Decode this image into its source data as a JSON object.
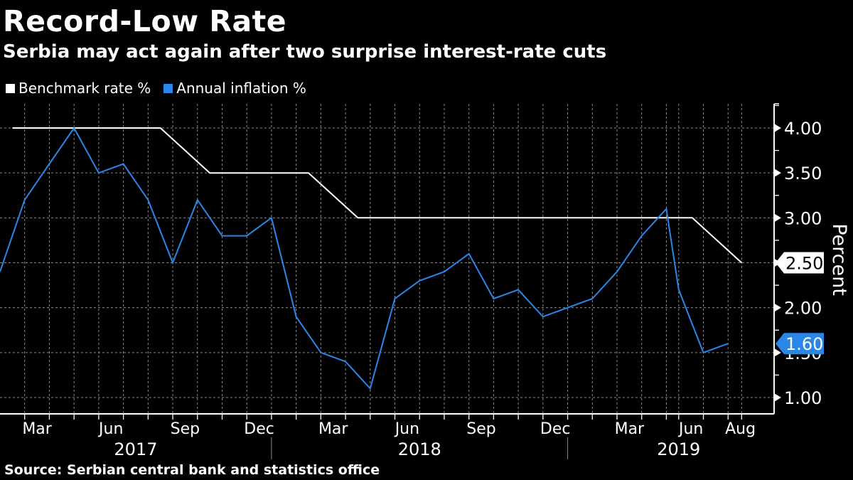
{
  "header": {
    "title": "Record-Low Rate",
    "subtitle": "Serbia may act again after two surprise interest-rate cuts"
  },
  "legend": [
    {
      "label": "Benchmark rate %",
      "color": "#ffffff"
    },
    {
      "label": "Annual inflation %",
      "color": "#2a87e8"
    }
  ],
  "source": "Source: Serbian central bank and statistics office",
  "chart_data": {
    "type": "line",
    "title": "Record-Low Rate",
    "subtitle": "Serbia may act again after two surprise interest-rate cuts",
    "xlabel": "",
    "ylabel": "Percent",
    "ylim": [
      0.85,
      4.3
    ],
    "yticks": [
      1.0,
      1.5,
      2.0,
      2.5,
      3.0,
      3.5,
      4.0
    ],
    "ytick_labels": [
      "1.00",
      "1.50",
      "2.00",
      "2.50",
      "3.00",
      "3.50",
      "4.00"
    ],
    "y_axis_side": "right",
    "grid": true,
    "legend_position": "top-left",
    "x_unit": "months since Jan 2017 (fractional)",
    "xlim": [
      0,
      32.4
    ],
    "month_ticks": [
      "Mar",
      "Jun",
      "Sep",
      "Dec",
      "Mar",
      "Jun",
      "Sep",
      "Dec",
      "Mar",
      "Jun",
      "Aug"
    ],
    "month_tick_positions": [
      1.5,
      4.5,
      7.5,
      10.5,
      13.5,
      16.5,
      19.5,
      22.5,
      25.5,
      28,
      30
    ],
    "years": [
      {
        "label": "2017",
        "center": 5.5
      },
      {
        "label": "2018",
        "center": 17
      },
      {
        "label": "2019",
        "center": 27.5
      }
    ],
    "year_separators": [
      11,
      23
    ],
    "series": [
      {
        "name": "Benchmark rate %",
        "color": "#ffffff",
        "x": [
          0.5,
          6.5,
          8.5,
          12.5,
          14.5,
          28.05,
          30.05
        ],
        "values": [
          4.0,
          4.0,
          3.5,
          3.5,
          3.0,
          3.0,
          2.5
        ],
        "last_value_label": "2.50"
      },
      {
        "name": "Annual inflation %",
        "color": "#2a87e8",
        "x": [
          0,
          1,
          2,
          3,
          4,
          5,
          6,
          7,
          8,
          9,
          10,
          11,
          12,
          13,
          14,
          15,
          16,
          17,
          18,
          19,
          20,
          21,
          22,
          23,
          24,
          25,
          26,
          27,
          27.5,
          28.5,
          29.5
        ],
        "dates": [
          "Jan 2017",
          "Feb 2017",
          "Mar 2017",
          "Apr 2017",
          "May 2017",
          "Jun 2017",
          "Jul 2017",
          "Aug 2017",
          "Sep 2017",
          "Oct 2017",
          "Nov 2017",
          "Dec 2017",
          "Jan 2018",
          "Feb 2018",
          "Mar 2018",
          "Apr 2018",
          "May 2018",
          "Jun 2018",
          "Jul 2018",
          "Aug 2018",
          "Sep 2018",
          "Oct 2018",
          "Nov 2018",
          "Dec 2018",
          "Jan 2019",
          "Feb 2019",
          "Mar 2019",
          "Apr 2019",
          "May 2019",
          "Jun 2019",
          "Jul 2019"
        ],
        "values": [
          2.4,
          3.2,
          3.6,
          4.0,
          3.5,
          3.6,
          3.2,
          2.5,
          3.2,
          2.8,
          2.8,
          3.0,
          1.9,
          1.5,
          1.4,
          1.1,
          2.1,
          2.3,
          2.4,
          2.6,
          2.1,
          2.2,
          1.9,
          2.0,
          2.1,
          2.4,
          2.8,
          3.1,
          2.2,
          1.5,
          1.6
        ],
        "last_value_label": "1.60"
      }
    ]
  }
}
